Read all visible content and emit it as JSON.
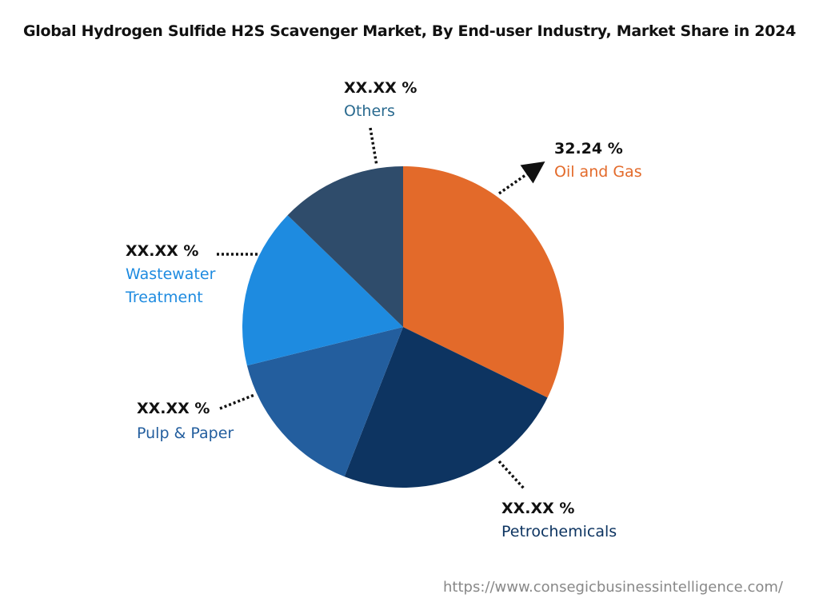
{
  "chart_data": {
    "type": "pie",
    "title": "Global Hydrogen Sulfide H2S Scavenger Market, By End-user Industry, Market Share in 2024",
    "slices": [
      {
        "label": "Oil and Gas",
        "value": 32.24,
        "display": "32.24 %",
        "color": "#E36A2A",
        "label_color": "#E36A2A"
      },
      {
        "label": "Petrochemicals",
        "value": 23.7,
        "display": "XX.XX %",
        "color": "#0D3461",
        "label_color": "#0D3461"
      },
      {
        "label": "Pulp & Paper",
        "value": 15.2,
        "display": "XX.XX %",
        "color": "#235E9E",
        "label_color": "#235E9E"
      },
      {
        "label": "Wastewater Treatment",
        "value": 16.1,
        "display": "XX.XX %",
        "color": "#1E8BE0",
        "label_color": "#1E8BE0"
      },
      {
        "label": "Others",
        "value": 12.76,
        "display": "XX.XX %",
        "color": "#2F4C6B",
        "label_color": "#2A6A8F"
      }
    ],
    "start_angle": "top",
    "direction": "clockwise"
  },
  "footer": {
    "url": "https://www.consegicbusinessintelligence.com/"
  }
}
